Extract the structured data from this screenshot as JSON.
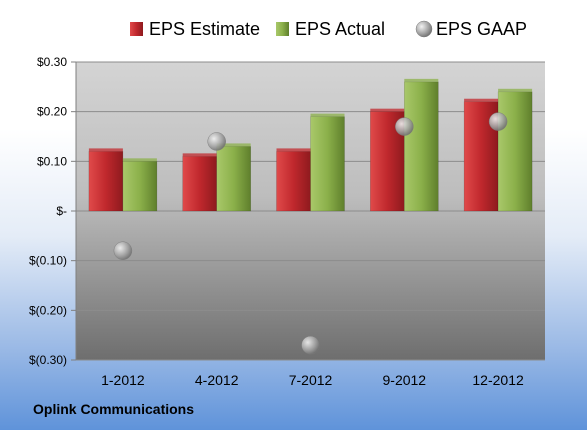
{
  "chart_data": {
    "type": "bar",
    "categories": [
      "1-2012",
      "4-2012",
      "7-2012",
      "9-2012",
      "12-2012"
    ],
    "series": [
      {
        "name": "EPS Estimate",
        "kind": "bar",
        "color": "#c0282d",
        "values": [
          0.12,
          0.11,
          0.12,
          0.2,
          0.22
        ]
      },
      {
        "name": "EPS Actual",
        "kind": "bar",
        "color": "#8bb04a",
        "values": [
          0.1,
          0.13,
          0.19,
          0.26,
          0.24
        ]
      },
      {
        "name": "EPS GAAP",
        "kind": "marker",
        "color": "#a6a6a6",
        "values": [
          -0.08,
          0.14,
          -0.27,
          0.17,
          0.18
        ]
      }
    ],
    "yticks": [
      {
        "value": 0.3,
        "label": "$0.30"
      },
      {
        "value": 0.2,
        "label": "$0.20"
      },
      {
        "value": 0.1,
        "label": "$0.10"
      },
      {
        "value": 0.0,
        "label": "$-"
      },
      {
        "value": -0.1,
        "label": "$(0.10)"
      },
      {
        "value": -0.2,
        "label": "$(0.20)"
      },
      {
        "value": -0.3,
        "label": "$(0.30)"
      }
    ],
    "ylim": [
      -0.3,
      0.3
    ],
    "grid": true,
    "legend_position": "top"
  },
  "footer": {
    "company": "Oplink Communications"
  }
}
